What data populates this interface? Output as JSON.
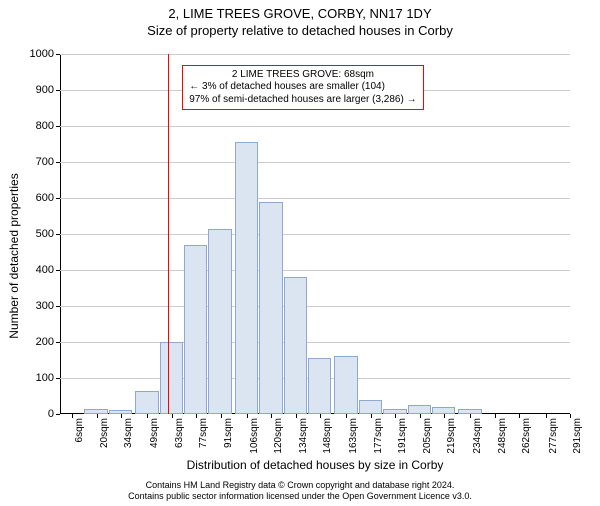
{
  "title_main": "2, LIME TREES GROVE, CORBY, NN17 1DY",
  "title_sub": "Size of property relative to detached houses in Corby",
  "ylabel": "Number of detached properties",
  "xlabel": "Distribution of detached houses by size in Corby",
  "chart": {
    "type": "histogram",
    "background_color": "#ffffff",
    "grid_color": "#cccccc",
    "axis_color": "#000000",
    "bar_fill": "#dbe5f1",
    "bar_stroke": "#8ea9d1",
    "ref_line_color": "#ff0000",
    "annotation_border": "#ff0000",
    "annotation_bg": "#ffffff",
    "fontsize_title": 13,
    "fontsize_axis_label": 12,
    "fontsize_tick": 11,
    "fontsize_xtick": 10,
    "fontsize_annotation": 10,
    "fontsize_footer": 9,
    "ylim": [
      0,
      1000
    ],
    "ytick_step": 100,
    "yticks": [
      0,
      100,
      200,
      300,
      400,
      500,
      600,
      700,
      800,
      900,
      1000
    ],
    "xlim_min": 6,
    "xlim_max": 298,
    "xtick_step": 14,
    "xtick_suffix": "sqm",
    "xticks": [
      6,
      20,
      34,
      49,
      63,
      77,
      91,
      106,
      120,
      134,
      148,
      163,
      177,
      191,
      205,
      219,
      234,
      248,
      262,
      277,
      291
    ],
    "bar_width_sqm": 14,
    "bars": [
      {
        "x": 6,
        "y": 0
      },
      {
        "x": 20,
        "y": 15
      },
      {
        "x": 34,
        "y": 10
      },
      {
        "x": 49,
        "y": 65
      },
      {
        "x": 63,
        "y": 200
      },
      {
        "x": 77,
        "y": 470
      },
      {
        "x": 91,
        "y": 515
      },
      {
        "x": 106,
        "y": 755
      },
      {
        "x": 120,
        "y": 590
      },
      {
        "x": 134,
        "y": 380
      },
      {
        "x": 148,
        "y": 155
      },
      {
        "x": 163,
        "y": 160
      },
      {
        "x": 177,
        "y": 40
      },
      {
        "x": 191,
        "y": 15
      },
      {
        "x": 205,
        "y": 25
      },
      {
        "x": 219,
        "y": 20
      },
      {
        "x": 234,
        "y": 15
      },
      {
        "x": 248,
        "y": 0
      },
      {
        "x": 262,
        "y": 0
      },
      {
        "x": 277,
        "y": 0
      },
      {
        "x": 291,
        "y": 0
      }
    ],
    "ref_line_x": 68,
    "annotation": {
      "x_sqm": 76,
      "y_val": 970,
      "lines": [
        "2 LIME TREES GROVE: 68sqm",
        "← 3% of detached houses are smaller (104)",
        "97% of semi-detached houses are larger (3,286) →"
      ]
    }
  },
  "footer_line1": "Contains HM Land Registry data © Crown copyright and database right 2024.",
  "footer_line2": "Contains public sector information licensed under the Open Government Licence v3.0."
}
